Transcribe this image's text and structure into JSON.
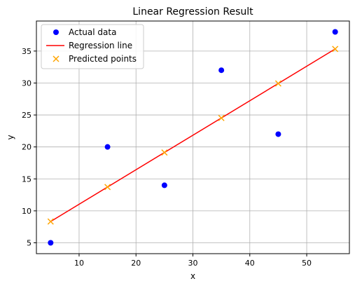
{
  "chart_data": {
    "type": "scatter",
    "title": "Linear Regression Result",
    "xlabel": "x",
    "ylabel": "y",
    "xlim": [
      2.5,
      57.5
    ],
    "ylim": [
      3.3,
      39.7
    ],
    "xticks": [
      10,
      20,
      30,
      40,
      50
    ],
    "yticks": [
      5,
      10,
      15,
      20,
      25,
      30,
      35
    ],
    "grid": true,
    "legend_position": "top-left",
    "series": [
      {
        "name": "Actual data",
        "kind": "scatter",
        "marker": "circle",
        "color": "#0000ff",
        "x": [
          5,
          15,
          25,
          35,
          45,
          55
        ],
        "y": [
          5,
          20,
          14,
          32,
          22,
          38
        ]
      },
      {
        "name": "Regression line",
        "kind": "line",
        "color": "#ff0000",
        "x": [
          5,
          55
        ],
        "y": [
          8.33,
          35.33
        ]
      },
      {
        "name": "Predicted points",
        "kind": "scatter",
        "marker": "x",
        "color": "#ffa500",
        "x": [
          5,
          15,
          25,
          35,
          45,
          55
        ],
        "y": [
          8.33,
          13.73,
          19.13,
          24.53,
          29.93,
          35.33
        ]
      }
    ]
  }
}
